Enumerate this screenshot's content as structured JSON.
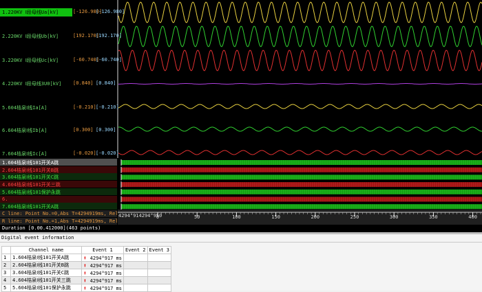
{
  "analog_channels": [
    {
      "name": "1.220KV Ⅰ段母线Ua[kV]",
      "value1": "[-126.980]",
      "value2": "[-126.980]"
    },
    {
      "name": "2.220KV Ⅰ段母线Ub[kV]",
      "value1": "[192.170]",
      "value2": "[192.170]"
    },
    {
      "name": "3.220KV Ⅰ段母线Uc[kV]",
      "value1": "[-60.740]",
      "value2": "[-60.740]"
    },
    {
      "name": "4.220KV Ⅰ段母线3U0[kV]",
      "value1": "[0.840]",
      "value2": "[0.840]"
    },
    {
      "name": "5.604桔泉Ⅰ线Ia[A]",
      "value1": "[-0.210]",
      "value2": "[-0.210]"
    },
    {
      "name": "6.604桔泉Ⅰ线Ib[A]",
      "value1": "[0.300]",
      "value2": "[0.300]"
    },
    {
      "name": "7.604桔泉Ⅰ线Ic[A]",
      "value1": "[-0.020]",
      "value2": "[-0.020]"
    }
  ],
  "digital_channels": [
    "1.604桔泉Ⅰ线101开关A跳",
    "2.604桔泉Ⅰ线101开关B跳",
    "3.604桔泉Ⅰ线101开关C跳",
    "4.604桔泉Ⅰ线101开关三跳",
    "5.604桔泉Ⅰ线101保护永跳",
    "6.",
    "7.604桔泉Ⅰ线101开关A跳"
  ],
  "cursor_info": [
    "C line: Point No.=0,Abs T=4294919ms, Rel T=4294919",
    "R line: Point No.=1,Abs T=4294919ms, Rel T=4294919"
  ],
  "timeline": {
    "start_label": "4294°914294°950",
    "ticks": [
      "0",
      "50",
      "100",
      "150",
      "200",
      "250",
      "300",
      "350",
      "400"
    ]
  },
  "duration": "Duration [0.00.412000](463 points)",
  "event_panel": {
    "title": "Digital event information",
    "columns": [
      "Channel name",
      "Event 1",
      "Event 2",
      "Event 3"
    ],
    "rows": [
      {
        "index": "1",
        "channel": "1.604桔泉Ⅰ线101开关A跳",
        "event1": "4294°917 ms"
      },
      {
        "index": "2",
        "channel": "2.604桔泉Ⅰ线101开关B跳",
        "event1": "4294°917 ms"
      },
      {
        "index": "3",
        "channel": "3.604桔泉Ⅰ线101开关C跳",
        "event1": "4294°917 ms"
      },
      {
        "index": "4",
        "channel": "4.604桔泉Ⅰ线101开关三跳",
        "event1": "4294°917 ms"
      },
      {
        "index": "5",
        "channel": "5.604桔泉Ⅰ线101保护永跳",
        "event1": "4294°917 ms"
      }
    ]
  }
}
